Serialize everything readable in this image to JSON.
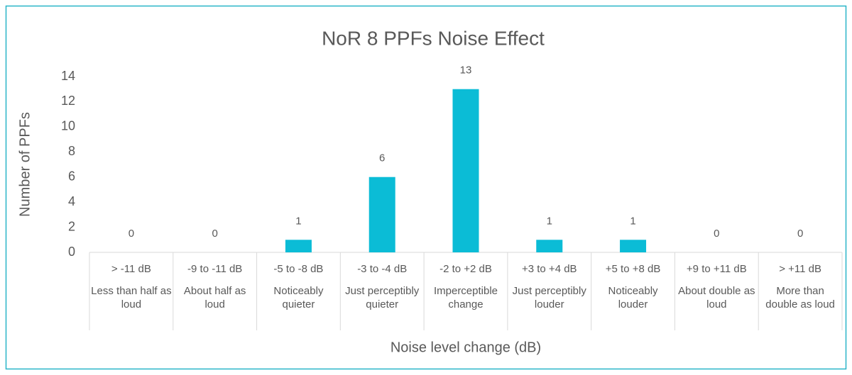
{
  "chart_data": {
    "type": "bar",
    "title": "NoR 8 PPFs Noise Effect",
    "y_label": "Number of PPFs",
    "x_label": "Noise level change (dB)",
    "categories": [
      "> -11 dB",
      "-9 to -11 dB",
      "-5 to -8 dB",
      "-3 to -4 dB",
      "-2 to +2 dB",
      "+3 to +4 dB",
      "+5 to +8 dB",
      "+9 to +11 dB",
      "> +11 dB"
    ],
    "category_descriptions": [
      "Less than half as loud",
      "About half as loud",
      "Noticeably quieter",
      "Just perceptibly quieter",
      "Imperceptible change",
      "Just perceptibly louder",
      "Noticeably louder",
      "About double as loud",
      "More than double as loud"
    ],
    "values": [
      0,
      0,
      1,
      6,
      13,
      1,
      1,
      0,
      0
    ],
    "color": "#0bbcd6",
    "ylim": [
      0,
      14
    ],
    "yticks": [
      0,
      2,
      4,
      6,
      8,
      10,
      12,
      14
    ],
    "grid": false
  }
}
